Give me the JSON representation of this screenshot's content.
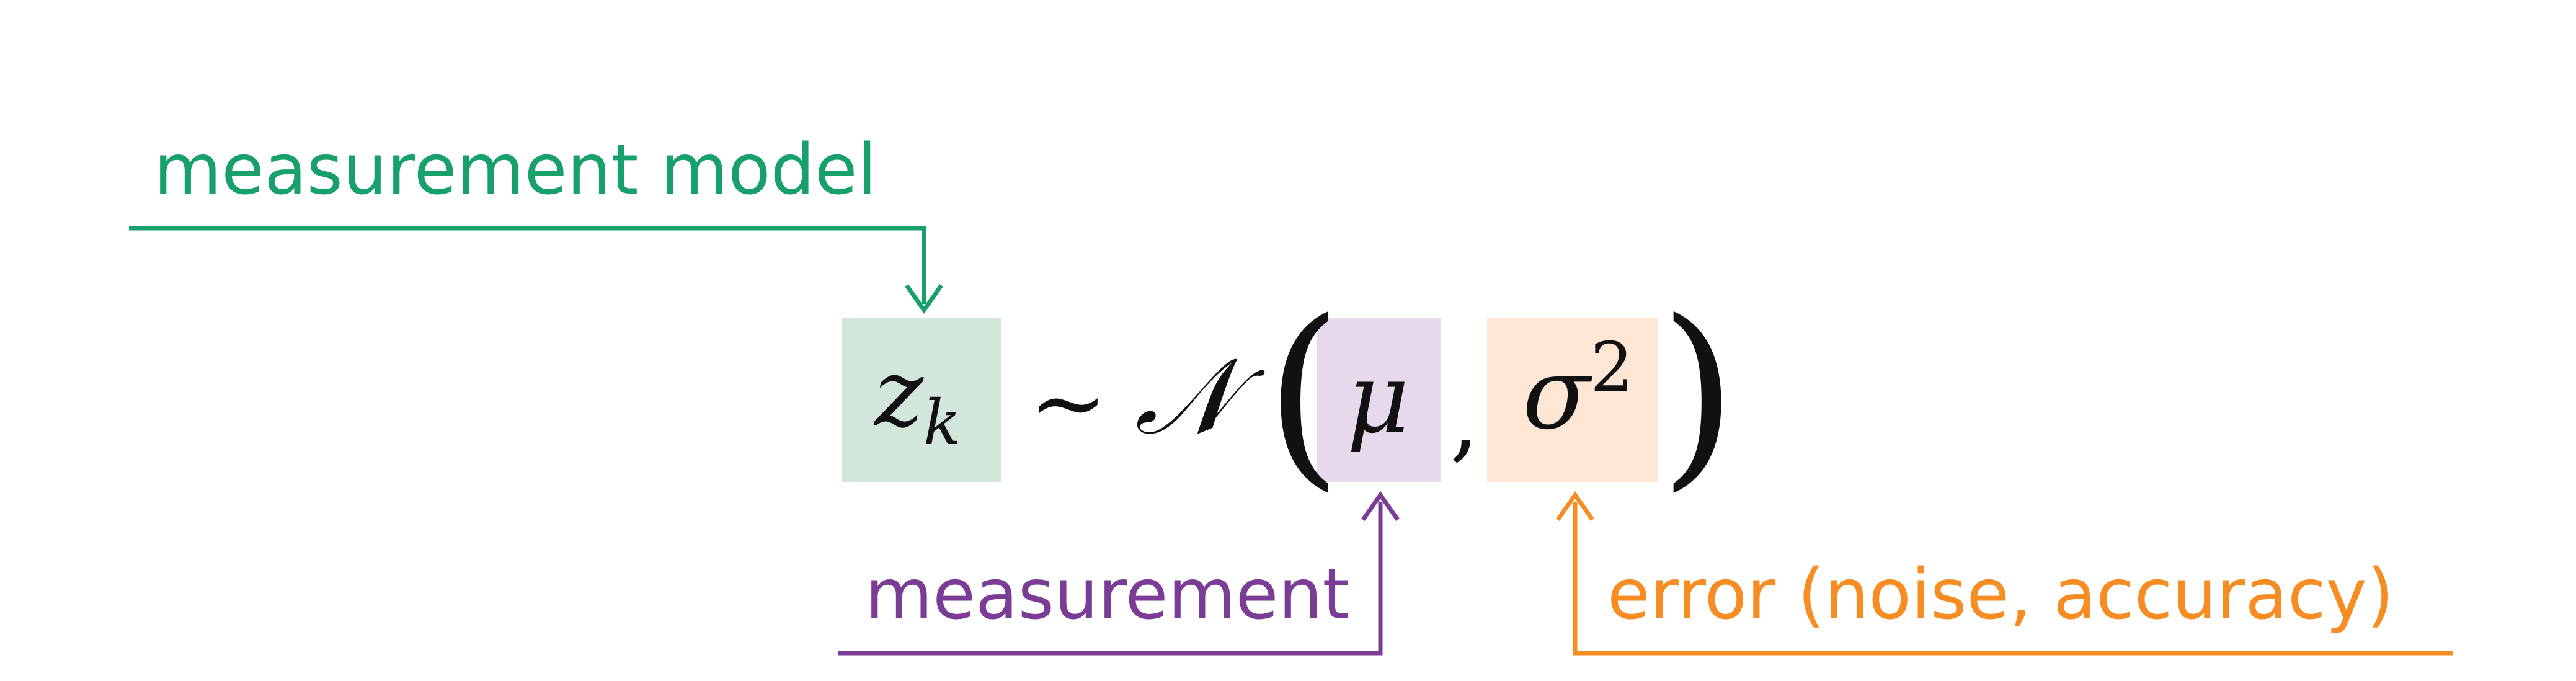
{
  "colors": {
    "measurement_model": "#17a06b",
    "measurement": "#7b3c96",
    "error": "#f68c22",
    "box_z": "#d3e6dc",
    "box_mu": "#e6d9ec",
    "box_sigma": "#fde6d3",
    "text": "#111111"
  },
  "labels": {
    "measurement_model": "measurement model",
    "measurement": "measurement",
    "error": "error (noise, accuracy)"
  },
  "equation": {
    "z": "z",
    "z_sub": "k",
    "tilde": "∼",
    "normal": "𝒩",
    "open_paren": "(",
    "mu": "μ",
    "comma": ",",
    "sigma": "σ",
    "sigma_sup": "2",
    "close_paren": ")"
  }
}
